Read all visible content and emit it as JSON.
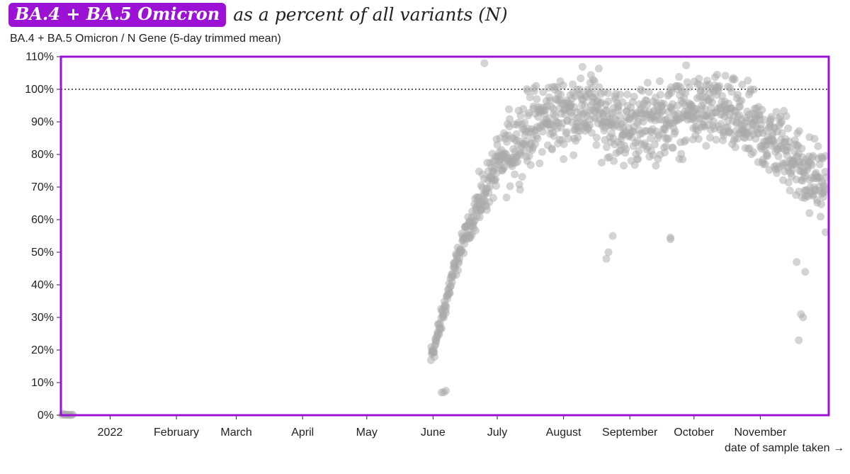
{
  "title": {
    "badge": "BA.4 + BA.5 Omicron",
    "rest": "as a percent of all variants (N)"
  },
  "subtitle": "BA.4 + BA.5 Omicron / N Gene (5-day trimmed mean)",
  "colors": {
    "frame": "#9b12d4",
    "badge_bg": "#9b12d4",
    "point": "#aaaaaa",
    "reference_line": "#000000"
  },
  "chart_data": {
    "type": "scatter",
    "title": "BA.4 + BA.5 Omicron as a percent of all variants (N)",
    "ylabel": "BA.4 + BA.5 Omicron / N Gene (5-day trimmed mean)",
    "xlabel": "date of sample taken",
    "ylim": [
      0,
      110
    ],
    "xlim_day_of_year": [
      -23,
      336
    ],
    "x_unit": "day offset from 2022-01-01",
    "y_ticks": [
      {
        "value": 0,
        "label": "0%"
      },
      {
        "value": 10,
        "label": "10%"
      },
      {
        "value": 20,
        "label": "20%"
      },
      {
        "value": 30,
        "label": "30%"
      },
      {
        "value": 40,
        "label": "40%"
      },
      {
        "value": 50,
        "label": "50%"
      },
      {
        "value": 60,
        "label": "60%"
      },
      {
        "value": 70,
        "label": "70%"
      },
      {
        "value": 80,
        "label": "80%"
      },
      {
        "value": 90,
        "label": "90%"
      },
      {
        "value": 100,
        "label": "100%"
      },
      {
        "value": 110,
        "label": "110%"
      }
    ],
    "x_ticks": [
      {
        "day": 0,
        "label": "2022"
      },
      {
        "day": 31,
        "label": "February"
      },
      {
        "day": 59,
        "label": "March"
      },
      {
        "day": 90,
        "label": "April"
      },
      {
        "day": 120,
        "label": "May"
      },
      {
        "day": 151,
        "label": "June"
      },
      {
        "day": 181,
        "label": "July"
      },
      {
        "day": 212,
        "label": "August"
      },
      {
        "day": 243,
        "label": "September"
      },
      {
        "day": 273,
        "label": "October"
      },
      {
        "day": 304,
        "label": "November"
      }
    ],
    "reference_line": {
      "value": 100,
      "style": "dotted"
    },
    "clip_marker": {
      "value": 110,
      "shape": "triangle",
      "meaning": "values above axis max"
    },
    "series": [
      {
        "name": "BA.4 + BA.5 Omicron / N Gene",
        "trend": [
          {
            "day": -22,
            "value": 0
          },
          {
            "day": -20,
            "value": 0
          },
          {
            "day": -18,
            "value": 0
          },
          {
            "day": 150,
            "value": 18
          },
          {
            "day": 153,
            "value": 24
          },
          {
            "day": 156,
            "value": 32
          },
          {
            "day": 159,
            "value": 40
          },
          {
            "day": 162,
            "value": 47
          },
          {
            "day": 165,
            "value": 53
          },
          {
            "day": 168,
            "value": 58
          },
          {
            "day": 172,
            "value": 64
          },
          {
            "day": 176,
            "value": 70
          },
          {
            "day": 180,
            "value": 75
          },
          {
            "day": 185,
            "value": 80
          },
          {
            "day": 190,
            "value": 84
          },
          {
            "day": 196,
            "value": 88
          },
          {
            "day": 203,
            "value": 91
          },
          {
            "day": 212,
            "value": 93
          },
          {
            "day": 225,
            "value": 94
          },
          {
            "day": 240,
            "value": 88
          },
          {
            "day": 255,
            "value": 90
          },
          {
            "day": 270,
            "value": 93
          },
          {
            "day": 285,
            "value": 93
          },
          {
            "day": 300,
            "value": 88
          },
          {
            "day": 315,
            "value": 82
          },
          {
            "day": 325,
            "value": 75
          },
          {
            "day": 335,
            "value": 70
          }
        ],
        "spread": 12,
        "points_per_day": 6
      }
    ],
    "outliers": [
      {
        "day": 155,
        "value": 7
      },
      {
        "day": 157,
        "value": 7.5
      },
      {
        "day": 156,
        "value": 7
      },
      {
        "day": 262,
        "value": 54
      },
      {
        "day": 262,
        "value": 54.5
      },
      {
        "day": 232,
        "value": 48
      },
      {
        "day": 233,
        "value": 50
      },
      {
        "day": 235,
        "value": 55
      },
      {
        "day": 321,
        "value": 47
      },
      {
        "day": 323,
        "value": 31
      },
      {
        "day": 324,
        "value": 30
      },
      {
        "day": 322,
        "value": 23
      },
      {
        "day": 325,
        "value": 44
      },
      {
        "day": 327,
        "value": 62
      },
      {
        "day": 175,
        "value": 108
      }
    ]
  }
}
